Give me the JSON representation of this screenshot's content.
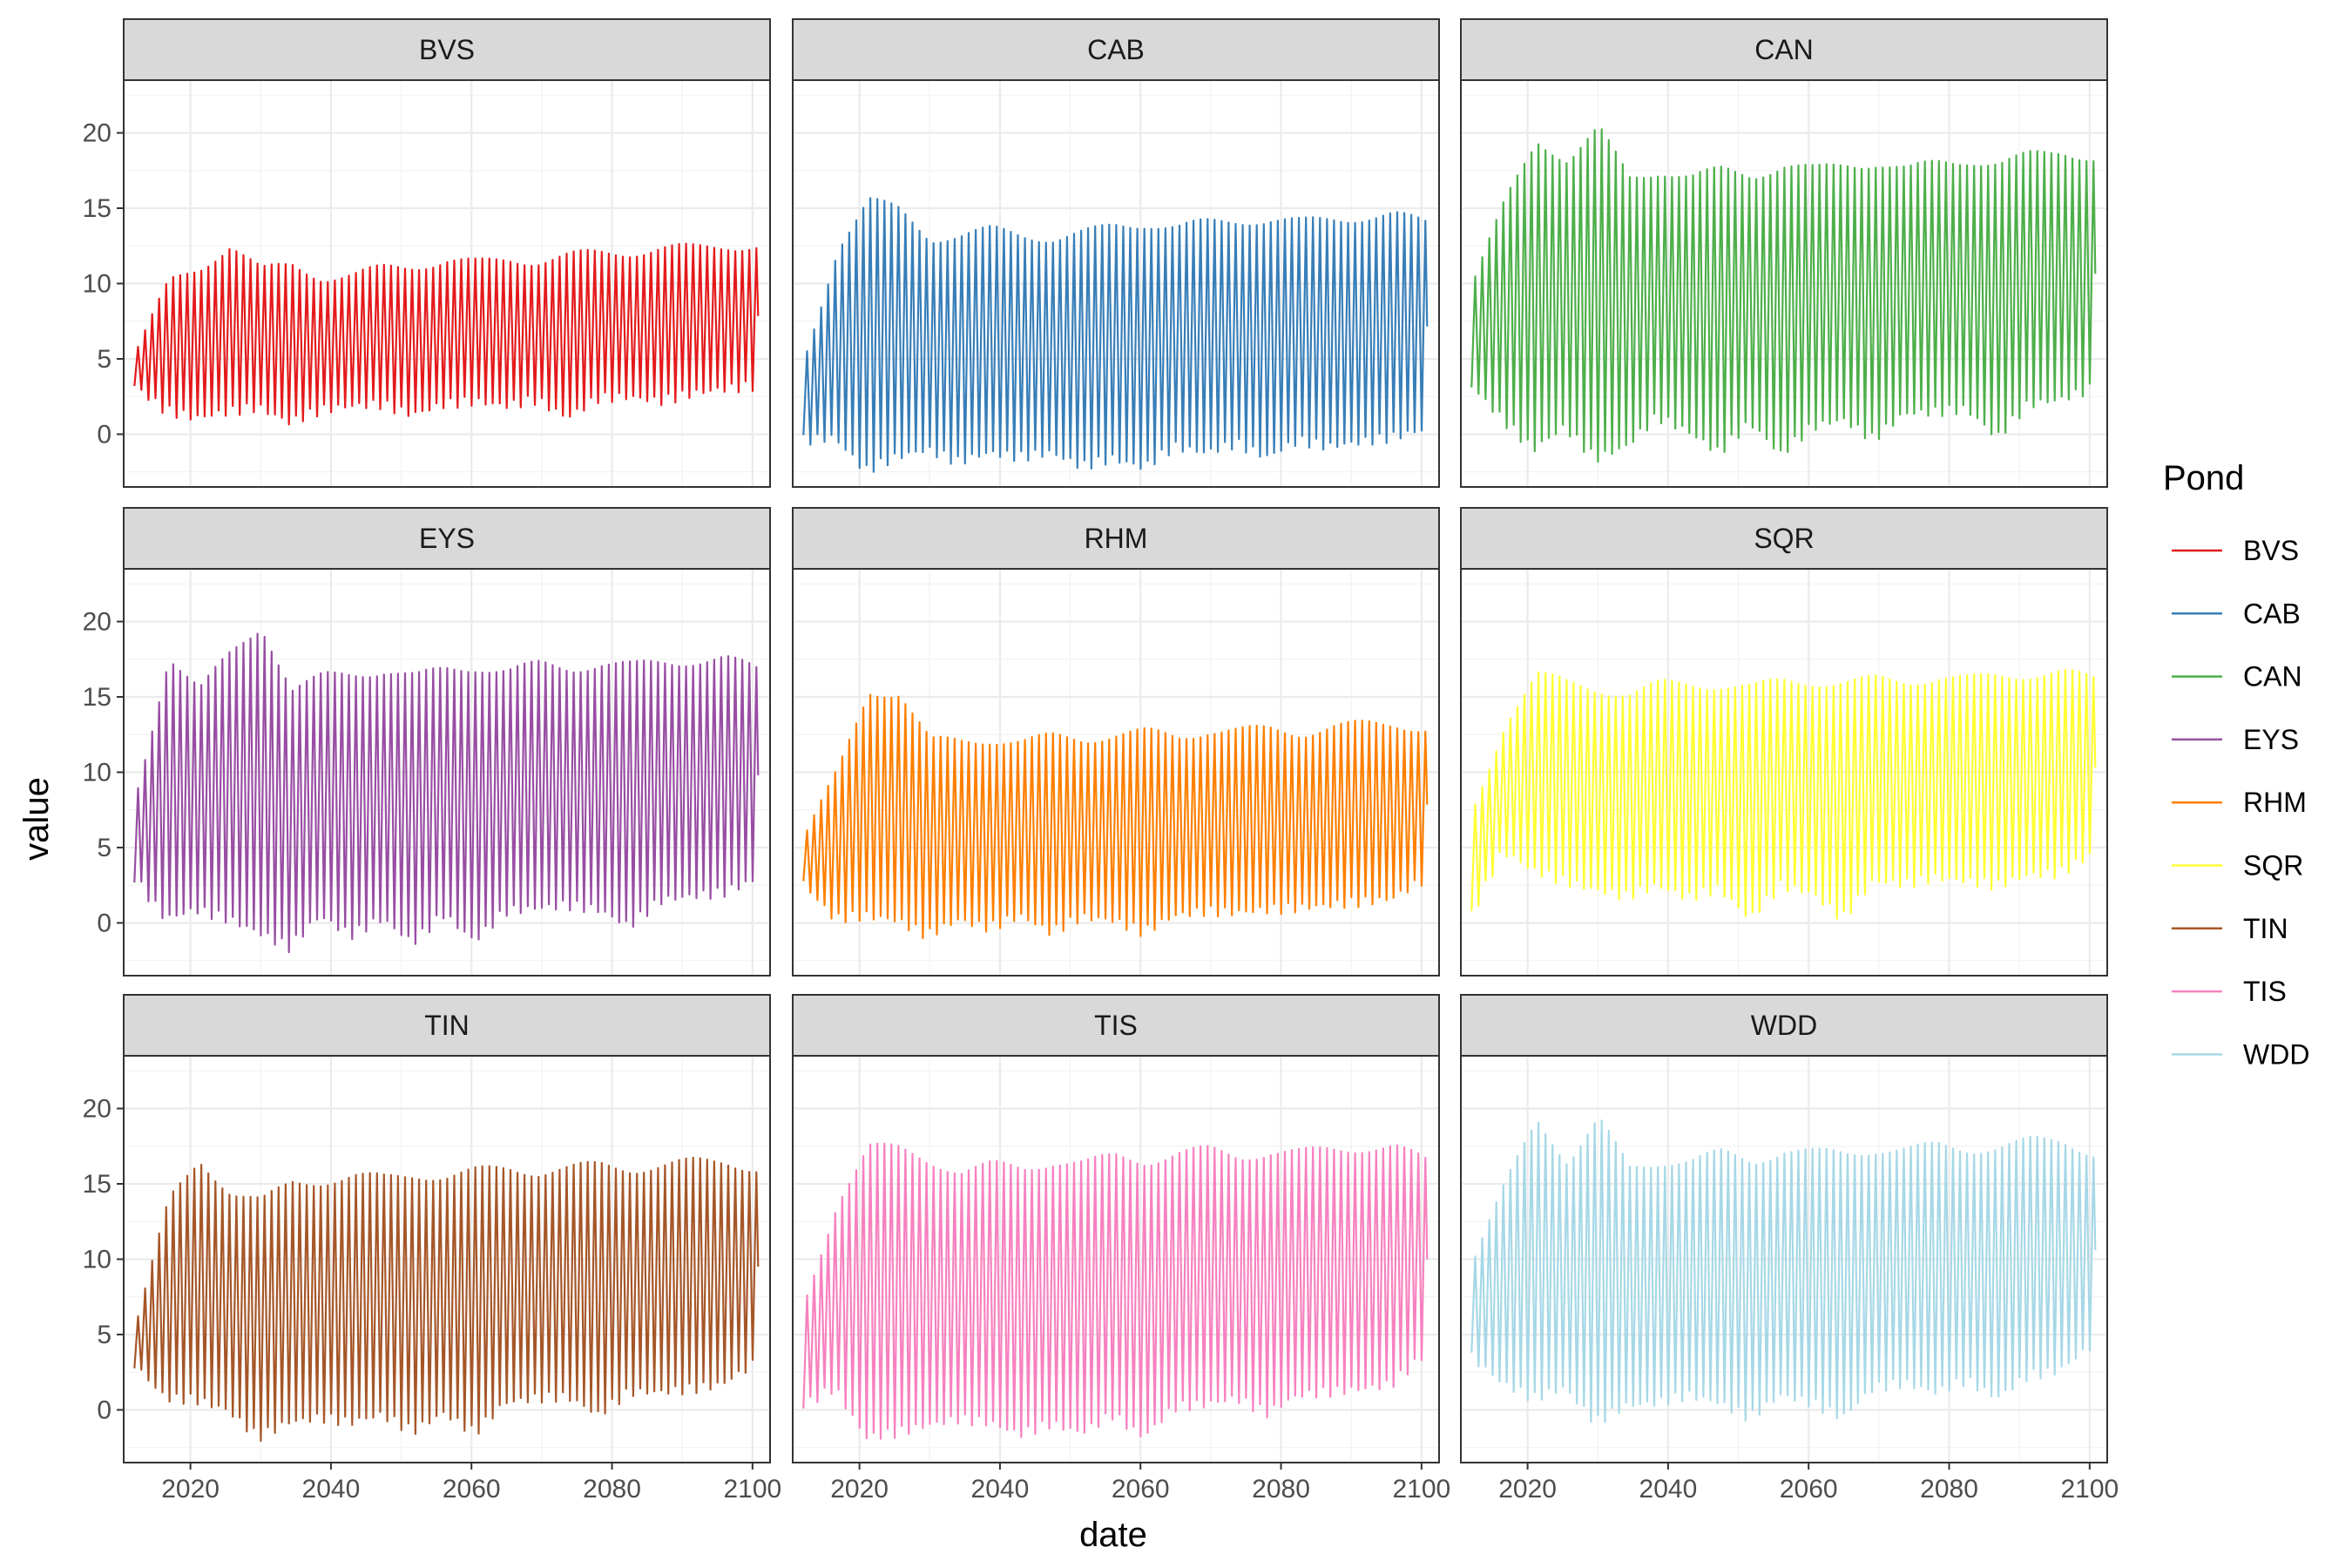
{
  "chart_data": {
    "type": "line",
    "facet_layout": "3x3",
    "xlabel": "date",
    "ylabel": "value",
    "x_ticks": [
      2020,
      2040,
      2060,
      2080,
      2100
    ],
    "y_ticks": [
      0,
      5,
      10,
      15,
      20
    ],
    "xlim": [
      2010.5,
      2102.5
    ],
    "ylim": [
      -3.5,
      23.5
    ],
    "grid": true,
    "legend_title": "Pond",
    "legend_position": "right",
    "series": [
      {
        "name": "BVS",
        "color": "#E41A1C",
        "x_start": 2012,
        "x_end": 2100.8,
        "peaks": [
          5.8,
          10.0,
          11.0,
          12.6,
          10.8,
          11.2,
          10.4,
          10.5,
          11.0,
          11.2,
          11.5,
          11.3,
          11.6,
          11.5,
          11.8,
          12.0,
          12.1,
          12.3,
          12.3,
          12.5,
          12.5
        ],
        "troughs": [
          3.2,
          1.6,
          1.1,
          1.5,
          1.8,
          0.8,
          1.6,
          1.9,
          2.0,
          1.3,
          2.0,
          2.2,
          1.9,
          2.3,
          1.1,
          2.4,
          2.5,
          2.2,
          2.7,
          3.0,
          3.2
        ]
      },
      {
        "name": "CAB",
        "color": "#377EB8",
        "x_start": 2012,
        "x_end": 2100.8,
        "peaks": [
          5.5,
          12.5,
          15.5,
          14.8,
          13.0,
          13.2,
          13.5,
          13.2,
          13.0,
          13.3,
          13.8,
          14.0,
          13.7,
          14.0,
          14.2,
          14.2,
          14.0,
          14.3,
          14.4,
          14.5,
          14.0
        ],
        "troughs": [
          -0.4,
          -0.2,
          -2.4,
          -1.5,
          -1.0,
          -1.8,
          -1.2,
          -1.5,
          -1.2,
          -2.1,
          -1.6,
          -2.2,
          -0.8,
          -1.2,
          -0.6,
          -1.5,
          -0.4,
          -0.8,
          -0.5,
          -0.2,
          0.3
        ]
      },
      {
        "name": "CAN",
        "color": "#4DAF4A",
        "x_start": 2012,
        "x_end": 2100.8,
        "peaks": [
          10.5,
          15.5,
          19.5,
          18.2,
          20.2,
          17.0,
          17.5,
          17.0,
          17.5,
          17.2,
          17.8,
          17.5,
          17.9,
          18.0,
          17.5,
          18.0,
          18.2,
          17.9,
          18.5,
          18.8,
          18.3
        ],
        "troughs": [
          3.2,
          1.0,
          -1.0,
          0.5,
          -1.6,
          -0.8,
          1.2,
          0.2,
          -1.2,
          0.8,
          -1.3,
          0.5,
          1.0,
          -0.3,
          1.4,
          1.5,
          1.7,
          -0.2,
          2.0,
          2.3,
          3.0
        ]
      },
      {
        "name": "EYS",
        "color": "#984EA3",
        "x_start": 2012,
        "x_end": 2100.8,
        "peaks": [
          8.9,
          17.8,
          15.5,
          17.8,
          19.7,
          15.5,
          16.3,
          16.5,
          16.8,
          16.3,
          16.8,
          17.0,
          16.7,
          17.1,
          16.9,
          17.2,
          17.0,
          17.3,
          17.4,
          17.5,
          16.8
        ],
        "troughs": [
          3.0,
          0.3,
          0.9,
          0.3,
          -0.6,
          -1.6,
          0.5,
          -0.8,
          0.3,
          -1.3,
          0.6,
          -1.2,
          0.8,
          1.0,
          1.2,
          0.9,
          -0.2,
          1.5,
          1.8,
          2.0,
          2.8
        ]
      },
      {
        "name": "RHM",
        "color": "#FF7F00",
        "x_start": 2012,
        "x_end": 2100.8,
        "peaks": [
          6.2,
          10.0,
          15.3,
          15.3,
          12.0,
          12.0,
          12.2,
          12.0,
          12.3,
          12.2,
          12.5,
          12.6,
          12.3,
          12.8,
          12.7,
          12.8,
          12.6,
          13.0,
          13.1,
          13.2,
          12.9
        ],
        "troughs": [
          2.6,
          0.3,
          0.5,
          0.2,
          -0.8,
          0.2,
          -0.3,
          0.5,
          -0.6,
          0.4,
          0.2,
          -0.6,
          0.5,
          0.8,
          0.7,
          0.9,
          1.0,
          1.2,
          1.4,
          1.6,
          2.8
        ]
      },
      {
        "name": "SQR",
        "color": "#FFFF33",
        "x_start": 2012,
        "x_end": 2100.8,
        "peaks": [
          7.8,
          13.5,
          16.5,
          15.8,
          15.5,
          15.2,
          15.8,
          15.8,
          15.8,
          15.6,
          16.0,
          16.0,
          15.9,
          16.1,
          16.0,
          16.3,
          16.1,
          16.4,
          16.5,
          16.6,
          16.1
        ],
        "troughs": [
          0.5,
          4.8,
          3.5,
          2.8,
          2.2,
          1.8,
          2.5,
          1.7,
          2.3,
          0.3,
          2.5,
          2.0,
          0.3,
          2.8,
          2.6,
          3.0,
          2.8,
          2.5,
          3.2,
          3.3,
          4.5
        ]
      },
      {
        "name": "TIN",
        "color": "#A65628",
        "x_start": 2012,
        "x_end": 2100.8,
        "peaks": [
          6.3,
          13.8,
          16.5,
          14.5,
          13.8,
          15.0,
          15.2,
          15.5,
          15.3,
          15.6,
          15.5,
          15.8,
          16.0,
          15.8,
          16.0,
          16.2,
          16.0,
          16.2,
          16.4,
          16.5,
          16.0
        ],
        "troughs": [
          3.0,
          0.8,
          0.7,
          0.0,
          -1.8,
          -0.8,
          -0.5,
          -0.8,
          -0.3,
          -1.4,
          -0.2,
          -1.5,
          0.5,
          0.8,
          0.9,
          -0.3,
          1.2,
          1.2,
          1.4,
          1.7,
          3.0
        ]
      },
      {
        "name": "TIS",
        "color": "#F781BF",
        "x_start": 2012,
        "x_end": 2100.8,
        "peaks": [
          7.5,
          14.0,
          17.5,
          17.2,
          16.5,
          15.8,
          16.2,
          16.0,
          16.5,
          16.3,
          16.8,
          16.5,
          17.0,
          17.2,
          16.8,
          17.1,
          17.0,
          17.3,
          17.4,
          17.4,
          16.5
        ],
        "troughs": [
          0.3,
          1.5,
          -1.8,
          -1.5,
          -1.0,
          -0.6,
          -0.8,
          -1.6,
          -0.9,
          -1.5,
          -0.3,
          -1.8,
          0.2,
          0.4,
          0.8,
          -0.2,
          1.0,
          1.2,
          1.4,
          1.7,
          3.5
        ]
      },
      {
        "name": "WDD",
        "color": "#A6D8E6",
        "x_start": 2012,
        "x_end": 2100.8,
        "peaks": [
          10.3,
          15.0,
          19.3,
          16.5,
          19.2,
          16.0,
          16.5,
          16.5,
          17.0,
          16.5,
          17.2,
          17.0,
          17.0,
          17.3,
          17.2,
          17.5,
          17.3,
          17.4,
          17.8,
          17.9,
          17.0
        ],
        "troughs": [
          3.5,
          1.8,
          0.8,
          1.5,
          -0.8,
          0.3,
          0.5,
          1.0,
          0.5,
          -0.5,
          1.0,
          0.5,
          -0.5,
          1.5,
          1.8,
          1.2,
          2.0,
          0.8,
          2.3,
          2.6,
          4.2
        ]
      }
    ]
  }
}
